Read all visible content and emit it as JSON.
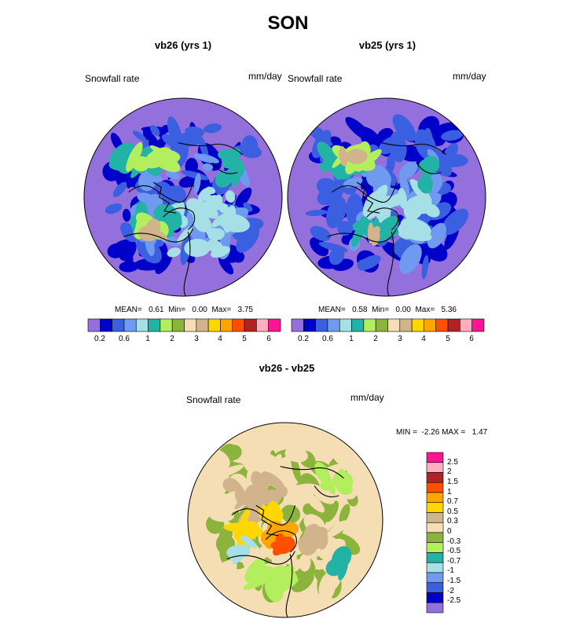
{
  "figure": {
    "title": "SON",
    "colors": {
      "levels": [
        "#9370db",
        "#0000c8",
        "#3a5fe0",
        "#6f9af0",
        "#a6dfe6",
        "#22b2a6",
        "#b2ee5e",
        "#8cb43c",
        "#f5deb3",
        "#d2b48c",
        "#ffd700",
        "#ffa500",
        "#ff5000",
        "#b22222",
        "#ffaec0",
        "#ff1493"
      ],
      "diff_levels": [
        "#9370db",
        "#0000c8",
        "#3a5fe0",
        "#6f9af0",
        "#a6dfe6",
        "#22b2a6",
        "#b2ee5e",
        "#8cb43c",
        "#f5deb3",
        "#d2b48c",
        "#ffd700",
        "#ffa500",
        "#ff5000",
        "#b22222",
        "#ffaec0",
        "#ff1493"
      ],
      "coast": "#000000"
    }
  },
  "panel1": {
    "title": "vb26 (yrs 1)",
    "variable": "Snowfall rate",
    "units": "mm/day",
    "stats": {
      "mean_label": "MEAN=",
      "mean": "0.61",
      "min_label": "Min=",
      "min": "0.00",
      "max_label": "Max=",
      "max": "3.75"
    }
  },
  "panel2": {
    "title": "vb25 (yrs 1)",
    "variable": "Snowfall rate",
    "units": "mm/day",
    "stats": {
      "mean_label": "MEAN=",
      "mean": "0.58",
      "min_label": "Min=",
      "min": "0.00",
      "max_label": "Max=",
      "max": "5.36"
    }
  },
  "panel3": {
    "title": "vb26 - vb25",
    "variable": "Snowfall rate",
    "units": "mm/day",
    "stats": {
      "min_label": "MIN =",
      "min": "-2.26",
      "max_label": "MAX =",
      "max": "1.47"
    }
  },
  "chart_data": [
    {
      "type": "heatmap",
      "projection": "north polar stereographic",
      "title": "vb26 (yrs 1)",
      "field": "Snowfall rate",
      "units": "mm/day",
      "mean": 0.61,
      "min": 0.0,
      "max": 3.75,
      "colorbar_ticks": [
        "0.2",
        "0.6",
        "1",
        "2",
        "3",
        "4",
        "5",
        "6"
      ],
      "colorbar_levels": 16
    },
    {
      "type": "heatmap",
      "projection": "north polar stereographic",
      "title": "vb25 (yrs 1)",
      "field": "Snowfall rate",
      "units": "mm/day",
      "mean": 0.58,
      "min": 0.0,
      "max": 5.36,
      "colorbar_ticks": [
        "0.2",
        "0.6",
        "1",
        "2",
        "3",
        "4",
        "5",
        "6"
      ],
      "colorbar_levels": 16
    },
    {
      "type": "heatmap",
      "projection": "north polar stereographic",
      "title": "vb26 - vb25",
      "field": "Snowfall rate",
      "units": "mm/day",
      "min": -2.26,
      "max": 1.47,
      "colorbar_ticks": [
        "2.5",
        "2",
        "1.5",
        "1",
        "0.7",
        "0.5",
        "0.3",
        "0",
        "-0.3",
        "-0.5",
        "-0.7",
        "-1",
        "-1.5",
        "-2",
        "-2.5"
      ],
      "colorbar_levels": 16
    }
  ]
}
